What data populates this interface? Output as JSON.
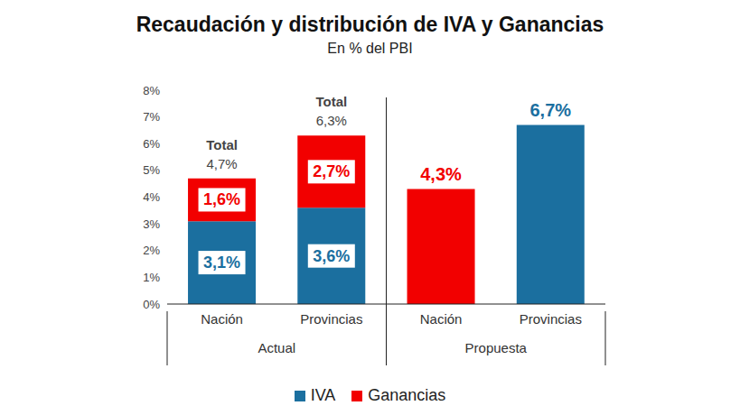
{
  "chart_data": {
    "type": "bar",
    "title": "Recaudación y distribución de IVA y Ganancias",
    "subtitle": "En % del PBI",
    "categories": [
      "Nación",
      "Provincias",
      "Nación",
      "Provincias"
    ],
    "groups": [
      "Actual",
      "Actual",
      "Propuesta",
      "Propuesta"
    ],
    "series": [
      {
        "name": "IVA",
        "color": "#1b6f9f",
        "values": [
          3.1,
          3.6,
          null,
          6.7
        ],
        "value_labels": [
          "3,1%",
          "3,6%",
          null,
          "6,7%"
        ]
      },
      {
        "name": "Ganancias",
        "color": "#f20000",
        "values": [
          1.6,
          2.7,
          4.3,
          null
        ],
        "value_labels": [
          "1,6%",
          "2,7%",
          "4,3%",
          null
        ]
      }
    ],
    "totals": {
      "label": "Total",
      "values": [
        4.7,
        6.3,
        null,
        null
      ],
      "value_labels": [
        "4,7%",
        "6,3%",
        null,
        null
      ]
    },
    "ylim": [
      0,
      8
    ],
    "yticks": [
      {
        "value": 0,
        "label": "0%"
      },
      {
        "value": 1,
        "label": "1%"
      },
      {
        "value": 2,
        "label": "2%"
      },
      {
        "value": 3,
        "label": "3%"
      },
      {
        "value": 4,
        "label": "4%"
      },
      {
        "value": 5,
        "label": "5%"
      },
      {
        "value": 6,
        "label": "6%"
      },
      {
        "value": 7,
        "label": "7%"
      },
      {
        "value": 8,
        "label": "8%"
      }
    ],
    "grid": false,
    "stacked": true,
    "data_labels": true,
    "legend": "bottom"
  }
}
